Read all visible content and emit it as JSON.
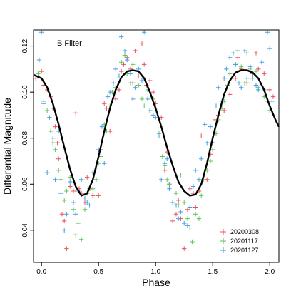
{
  "chart_data": {
    "type": "scatter",
    "title": "",
    "annotation": "B Filter",
    "xlabel": "Phase",
    "ylabel": "Differential Magnitude",
    "xlim": [
      -0.07,
      2.08
    ],
    "ylim": [
      0.026,
      0.127
    ],
    "x_ticks": [
      0.0,
      0.5,
      1.0,
      1.5,
      2.0
    ],
    "x_tick_labels": [
      "0.0",
      "0.5",
      "1.0",
      "1.5",
      "2.0"
    ],
    "y_ticks": [
      0.04,
      0.06,
      0.08,
      0.1,
      0.12
    ],
    "y_tick_labels": [
      "0.04",
      "0.06",
      "0.08",
      "0.10",
      "0.12"
    ],
    "grid": false,
    "legend_position": "bottom-right",
    "marker": "plus",
    "fit_curve": {
      "color": "#000000",
      "points": [
        [
          -0.07,
          0.1075
        ],
        [
          0.0,
          0.106
        ],
        [
          0.05,
          0.102
        ],
        [
          0.1,
          0.095
        ],
        [
          0.15,
          0.086
        ],
        [
          0.2,
          0.076
        ],
        [
          0.25,
          0.0665
        ],
        [
          0.3,
          0.059
        ],
        [
          0.35,
          0.055
        ],
        [
          0.4,
          0.056
        ],
        [
          0.45,
          0.062
        ],
        [
          0.5,
          0.072
        ],
        [
          0.55,
          0.083
        ],
        [
          0.6,
          0.093
        ],
        [
          0.65,
          0.101
        ],
        [
          0.7,
          0.1065
        ],
        [
          0.75,
          0.109
        ],
        [
          0.8,
          0.1095
        ],
        [
          0.85,
          0.109
        ],
        [
          0.9,
          0.106
        ],
        [
          0.95,
          0.1
        ],
        [
          1.0,
          0.093
        ],
        [
          1.05,
          0.085
        ],
        [
          1.1,
          0.076
        ],
        [
          1.15,
          0.068
        ],
        [
          1.2,
          0.061
        ],
        [
          1.25,
          0.057
        ],
        [
          1.3,
          0.055
        ],
        [
          1.35,
          0.0555
        ],
        [
          1.4,
          0.06
        ],
        [
          1.45,
          0.069
        ],
        [
          1.5,
          0.08
        ],
        [
          1.55,
          0.09
        ],
        [
          1.6,
          0.099
        ],
        [
          1.65,
          0.105
        ],
        [
          1.7,
          0.1085
        ],
        [
          1.75,
          0.1095
        ],
        [
          1.8,
          0.1095
        ],
        [
          1.85,
          0.1085
        ],
        [
          1.9,
          0.106
        ],
        [
          1.95,
          0.101
        ],
        [
          2.0,
          0.094
        ],
        [
          2.05,
          0.088
        ],
        [
          2.08,
          0.085
        ]
      ]
    },
    "series": [
      {
        "name": "20200308",
        "color": "#e8505b",
        "points": [
          [
            -0.05,
            0.106
          ],
          [
            0.0,
            0.109
          ],
          [
            0.02,
            0.103
          ],
          [
            0.05,
            0.101
          ],
          [
            0.08,
            0.098
          ],
          [
            0.1,
            0.093
          ],
          [
            0.12,
            0.085
          ],
          [
            0.14,
            0.078
          ],
          [
            0.15,
            0.071
          ],
          [
            0.18,
            0.047
          ],
          [
            0.2,
            0.044
          ],
          [
            0.22,
            0.032
          ],
          [
            0.25,
            0.059
          ],
          [
            0.28,
            0.057
          ],
          [
            0.3,
            0.091
          ],
          [
            0.33,
            0.058
          ],
          [
            0.35,
            0.056
          ],
          [
            0.38,
            0.052
          ],
          [
            0.4,
            0.063
          ],
          [
            0.43,
            0.058
          ],
          [
            0.45,
            0.055
          ],
          [
            0.5,
            0.055
          ],
          [
            0.52,
            0.075
          ],
          [
            0.55,
            0.095
          ],
          [
            0.57,
            0.093
          ],
          [
            0.6,
            0.083
          ],
          [
            0.65,
            0.097
          ],
          [
            0.68,
            0.101
          ],
          [
            0.7,
            0.109
          ],
          [
            0.72,
            0.112
          ],
          [
            0.75,
            0.115
          ],
          [
            0.78,
            0.11
          ],
          [
            0.8,
            0.104
          ],
          [
            0.82,
            0.118
          ],
          [
            0.85,
            0.107
          ],
          [
            0.88,
            0.121
          ],
          [
            0.9,
            0.112
          ],
          [
            0.92,
            0.103
          ],
          [
            0.95,
            0.105
          ],
          [
            0.98,
            0.1
          ],
          [
            1.0,
            0.095
          ],
          [
            1.05,
            0.089
          ],
          [
            1.08,
            0.066
          ],
          [
            1.1,
            0.074
          ],
          [
            1.12,
            0.06
          ],
          [
            1.15,
            0.044
          ],
          [
            1.18,
            0.047
          ],
          [
            1.2,
            0.053
          ],
          [
            1.22,
            0.045
          ],
          [
            1.25,
            0.032
          ],
          [
            1.28,
            0.049
          ],
          [
            1.3,
            0.058
          ],
          [
            1.33,
            0.056
          ],
          [
            1.35,
            0.05
          ],
          [
            1.38,
            0.057
          ],
          [
            1.4,
            0.081
          ],
          [
            1.43,
            0.064
          ],
          [
            1.45,
            0.062
          ],
          [
            1.48,
            0.073
          ],
          [
            1.5,
            0.078
          ],
          [
            1.52,
            0.088
          ],
          [
            1.55,
            0.09
          ],
          [
            1.58,
            0.093
          ],
          [
            1.6,
            0.092
          ],
          [
            1.65,
            0.099
          ],
          [
            1.7,
            0.106
          ],
          [
            1.72,
            0.115
          ],
          [
            1.75,
            0.11
          ],
          [
            1.8,
            0.104
          ],
          [
            1.83,
            0.109
          ],
          [
            1.85,
            0.108
          ],
          [
            1.88,
            0.117
          ],
          [
            1.9,
            0.11
          ],
          [
            1.95,
            0.108
          ],
          [
            2.0,
            0.101
          ],
          [
            2.03,
            0.098
          ]
        ]
      },
      {
        "name": "20201117",
        "color": "#5dc35d",
        "points": [
          [
            -0.03,
            0.108
          ],
          [
            0.02,
            0.096
          ],
          [
            0.05,
            0.092
          ],
          [
            0.08,
            0.083
          ],
          [
            0.1,
            0.078
          ],
          [
            0.12,
            0.075
          ],
          [
            0.15,
            0.066
          ],
          [
            0.17,
            0.062
          ],
          [
            0.2,
            0.053
          ],
          [
            0.22,
            0.057
          ],
          [
            0.25,
            0.063
          ],
          [
            0.28,
            0.049
          ],
          [
            0.3,
            0.038
          ],
          [
            0.32,
            0.043
          ],
          [
            0.35,
            0.036
          ],
          [
            0.38,
            0.049
          ],
          [
            0.4,
            0.056
          ],
          [
            0.42,
            0.058
          ],
          [
            0.45,
            0.058
          ],
          [
            0.48,
            0.062
          ],
          [
            0.5,
            0.069
          ],
          [
            0.52,
            0.072
          ],
          [
            0.55,
            0.086
          ],
          [
            0.57,
            0.083
          ],
          [
            0.6,
            0.094
          ],
          [
            0.62,
            0.1
          ],
          [
            0.65,
            0.102
          ],
          [
            0.67,
            0.107
          ],
          [
            0.7,
            0.113
          ],
          [
            0.73,
            0.116
          ],
          [
            0.75,
            0.108
          ],
          [
            0.78,
            0.104
          ],
          [
            0.8,
            0.112
          ],
          [
            0.85,
            0.103
          ],
          [
            0.88,
            0.097
          ],
          [
            0.9,
            0.094
          ],
          [
            0.93,
            0.101
          ],
          [
            0.95,
            0.092
          ],
          [
            0.98,
            0.097
          ],
          [
            1.0,
            0.093
          ],
          [
            1.03,
            0.082
          ],
          [
            1.06,
            0.072
          ],
          [
            1.08,
            0.068
          ],
          [
            1.1,
            0.062
          ],
          [
            1.12,
            0.06
          ],
          [
            1.15,
            0.052
          ],
          [
            1.18,
            0.056
          ],
          [
            1.2,
            0.051
          ],
          [
            1.22,
            0.064
          ],
          [
            1.25,
            0.052
          ],
          [
            1.28,
            0.045
          ],
          [
            1.3,
            0.041
          ],
          [
            1.32,
            0.035
          ],
          [
            1.35,
            0.047
          ],
          [
            1.38,
            0.045
          ],
          [
            1.4,
            0.055
          ],
          [
            1.42,
            0.062
          ],
          [
            1.45,
            0.066
          ],
          [
            1.48,
            0.07
          ],
          [
            1.5,
            0.075
          ],
          [
            1.53,
            0.082
          ],
          [
            1.55,
            0.088
          ],
          [
            1.58,
            0.093
          ],
          [
            1.6,
            0.096
          ],
          [
            1.63,
            0.103
          ],
          [
            1.65,
            0.108
          ],
          [
            1.7,
            0.112
          ],
          [
            1.72,
            0.118
          ],
          [
            1.75,
            0.111
          ],
          [
            1.78,
            0.104
          ],
          [
            1.8,
            0.117
          ],
          [
            1.83,
            0.11
          ],
          [
            1.85,
            0.106
          ],
          [
            1.88,
            0.109
          ],
          [
            1.9,
            0.102
          ],
          [
            1.95,
            0.098
          ],
          [
            1.98,
            0.096
          ],
          [
            2.0,
            0.092
          ]
        ]
      },
      {
        "name": "20201127",
        "color": "#3f9fe8",
        "points": [
          [
            -0.02,
            0.114
          ],
          [
            0.0,
            0.126
          ],
          [
            0.02,
            0.095
          ],
          [
            0.05,
            0.065
          ],
          [
            0.07,
            0.089
          ],
          [
            0.1,
            0.08
          ],
          [
            0.12,
            0.062
          ],
          [
            0.15,
            0.083
          ],
          [
            0.17,
            0.056
          ],
          [
            0.2,
            0.04
          ],
          [
            0.22,
            0.047
          ],
          [
            0.25,
            0.061
          ],
          [
            0.28,
            0.052
          ],
          [
            0.3,
            0.047
          ],
          [
            0.32,
            0.057
          ],
          [
            0.35,
            0.062
          ],
          [
            0.38,
            0.054
          ],
          [
            0.4,
            0.052
          ],
          [
            0.42,
            0.051
          ],
          [
            0.45,
            0.065
          ],
          [
            0.48,
            0.067
          ],
          [
            0.5,
            0.075
          ],
          [
            0.53,
            0.085
          ],
          [
            0.55,
            0.069
          ],
          [
            0.58,
            0.098
          ],
          [
            0.6,
            0.1
          ],
          [
            0.63,
            0.104
          ],
          [
            0.65,
            0.11
          ],
          [
            0.68,
            0.107
          ],
          [
            0.7,
            0.124
          ],
          [
            0.73,
            0.118
          ],
          [
            0.75,
            0.114
          ],
          [
            0.78,
            0.108
          ],
          [
            0.8,
            0.097
          ],
          [
            0.82,
            0.102
          ],
          [
            0.85,
            0.11
          ],
          [
            0.88,
            0.105
          ],
          [
            0.9,
            0.126
          ],
          [
            0.93,
            0.097
          ],
          [
            0.95,
            0.092
          ],
          [
            0.98,
            0.09
          ],
          [
            1.0,
            0.089
          ],
          [
            1.03,
            0.081
          ],
          [
            1.05,
            0.062
          ],
          [
            1.08,
            0.069
          ],
          [
            1.1,
            0.071
          ],
          [
            1.12,
            0.058
          ],
          [
            1.15,
            0.052
          ],
          [
            1.18,
            0.051
          ],
          [
            1.2,
            0.045
          ],
          [
            1.22,
            0.048
          ],
          [
            1.25,
            0.043
          ],
          [
            1.28,
            0.042
          ],
          [
            1.3,
            0.05
          ],
          [
            1.33,
            0.059
          ],
          [
            1.35,
            0.066
          ],
          [
            1.38,
            0.062
          ],
          [
            1.4,
            0.071
          ],
          [
            1.43,
            0.086
          ],
          [
            1.45,
            0.078
          ],
          [
            1.48,
            0.085
          ],
          [
            1.5,
            0.078
          ],
          [
            1.53,
            0.094
          ],
          [
            1.55,
            0.102
          ],
          [
            1.58,
            0.096
          ],
          [
            1.6,
            0.106
          ],
          [
            1.62,
            0.11
          ],
          [
            1.65,
            0.115
          ],
          [
            1.68,
            0.117
          ],
          [
            1.7,
            0.112
          ],
          [
            1.73,
            0.104
          ],
          [
            1.75,
            0.102
          ],
          [
            1.78,
            0.118
          ],
          [
            1.8,
            0.106
          ],
          [
            1.83,
            0.111
          ],
          [
            1.85,
            0.107
          ],
          [
            1.88,
            0.103
          ],
          [
            1.9,
            0.101
          ],
          [
            1.93,
            0.113
          ],
          [
            1.95,
            0.101
          ],
          [
            1.98,
            0.126
          ],
          [
            2.0,
            0.119
          ],
          [
            2.02,
            0.096
          ]
        ]
      }
    ]
  }
}
